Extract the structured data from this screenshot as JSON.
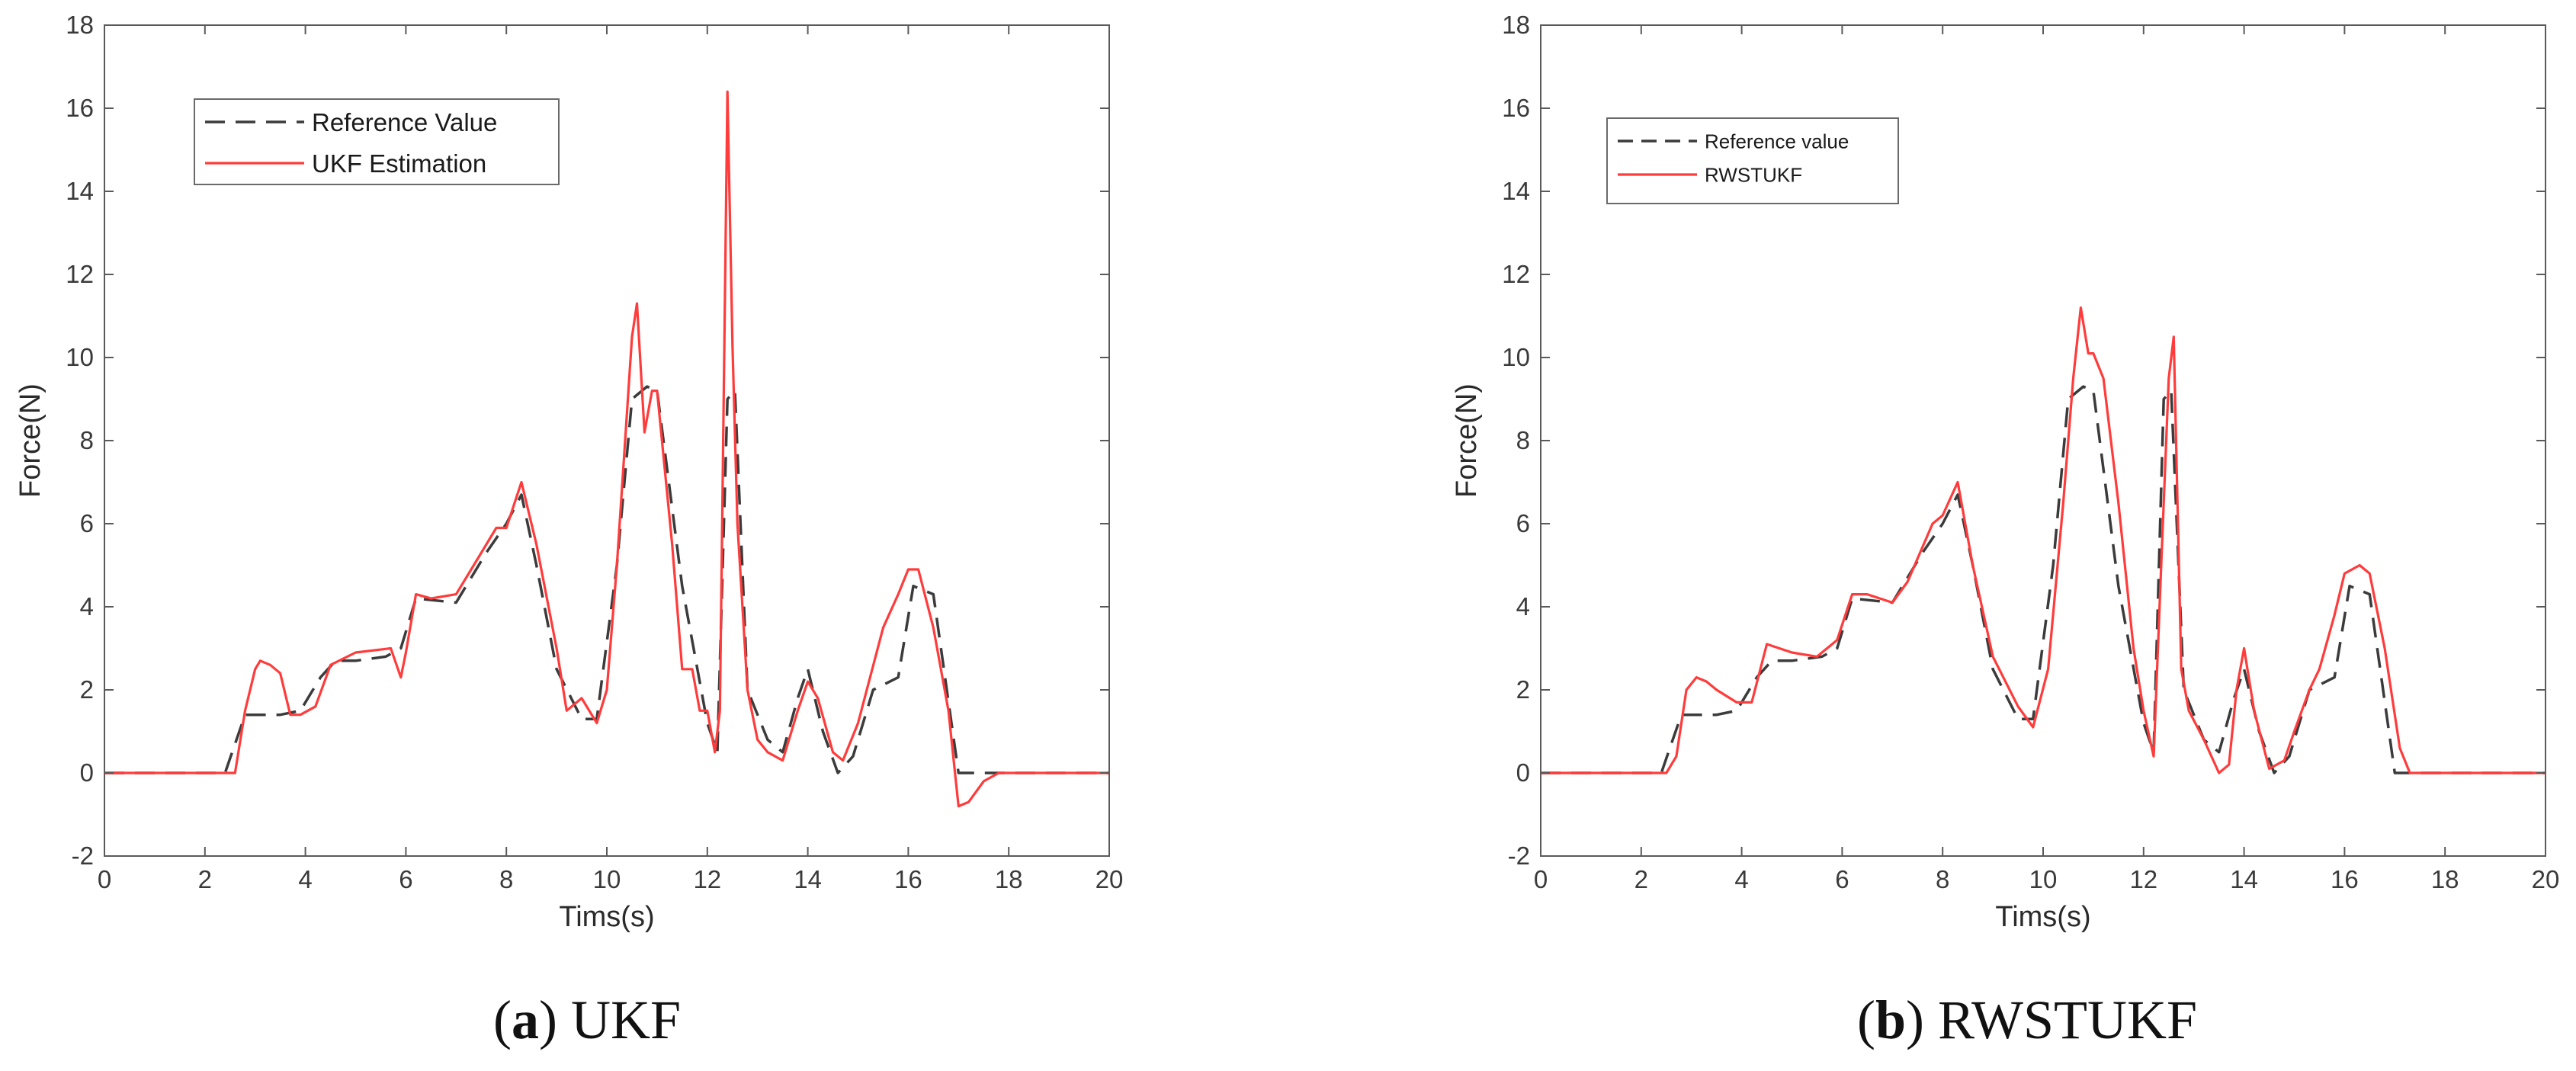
{
  "colors": {
    "reference": "#3b3b3b",
    "estimate": "#ff3b3b",
    "axis": "#5a5a5a"
  },
  "captions": [
    {
      "letter": "a",
      "text": "UKF"
    },
    {
      "letter": "b",
      "text": "RWSTUKF"
    }
  ],
  "chart_data": [
    {
      "type": "line",
      "xlabel": "Tims(s)",
      "ylabel": "Force(N)",
      "xlim": [
        0,
        20
      ],
      "ylim": [
        -2,
        18
      ],
      "xticks": [
        "0",
        "2",
        "4",
        "6",
        "8",
        "10",
        "12",
        "14",
        "16",
        "18",
        "20"
      ],
      "yticks": [
        "-2",
        "0",
        "2",
        "4",
        "6",
        "8",
        "10",
        "12",
        "14",
        "16",
        "18"
      ],
      "grid": false,
      "legend_position": "top-left",
      "series": [
        {
          "name": "Reference Value",
          "style": "dashed",
          "color": "#3b3b3b",
          "x": [
            0,
            2.4,
            2.6,
            2.8,
            3.5,
            3.9,
            4.3,
            4.6,
            5.0,
            5.6,
            5.9,
            6.2,
            7.0,
            7.6,
            8.0,
            8.3,
            8.6,
            9.0,
            9.5,
            9.8,
            10.2,
            10.5,
            10.8,
            11.0,
            11.5,
            12.0,
            12.2,
            12.4,
            12.55,
            12.8,
            13.2,
            13.5,
            13.8,
            14.0,
            14.3,
            14.6,
            14.9,
            15.3,
            15.8,
            16.1,
            16.5,
            17.0,
            20
          ],
          "y": [
            0,
            0,
            0.7,
            1.4,
            1.4,
            1.5,
            2.3,
            2.7,
            2.7,
            2.8,
            3.0,
            4.2,
            4.1,
            5.3,
            6.0,
            6.7,
            5.0,
            2.5,
            1.3,
            1.3,
            5.0,
            9.0,
            9.3,
            9.2,
            4.5,
            1.2,
            0.5,
            9.0,
            9.2,
            2.0,
            0.8,
            0.5,
            1.8,
            2.5,
            1.0,
            0.0,
            0.4,
            2.0,
            2.3,
            4.5,
            4.3,
            0.0,
            0.0
          ]
        },
        {
          "name": "UKF Estimation",
          "style": "solid",
          "color": "#ff3b3b",
          "x": [
            0,
            2.6,
            2.8,
            3.0,
            3.1,
            3.3,
            3.5,
            3.7,
            3.9,
            4.2,
            4.5,
            5.0,
            5.7,
            5.9,
            6.0,
            6.2,
            6.5,
            7.0,
            7.3,
            7.8,
            8.0,
            8.3,
            8.6,
            9.0,
            9.2,
            9.5,
            9.8,
            10.0,
            10.2,
            10.5,
            10.6,
            10.75,
            10.9,
            11.0,
            11.3,
            11.5,
            11.7,
            11.85,
            12.0,
            12.15,
            12.25,
            12.4,
            12.5,
            12.6,
            12.8,
            13.0,
            13.2,
            13.5,
            13.8,
            14.0,
            14.2,
            14.5,
            14.7,
            15.0,
            15.5,
            15.8,
            16.0,
            16.2,
            16.5,
            16.8,
            17.0,
            17.2,
            17.5,
            17.8,
            20
          ],
          "y": [
            0,
            0,
            1.5,
            2.5,
            2.7,
            2.6,
            2.4,
            1.4,
            1.4,
            1.6,
            2.6,
            2.9,
            3.0,
            2.3,
            2.9,
            4.3,
            4.2,
            4.3,
            4.9,
            5.9,
            5.9,
            7.0,
            5.5,
            3.0,
            1.5,
            1.8,
            1.2,
            2.0,
            5.0,
            10.5,
            11.3,
            8.2,
            9.2,
            9.2,
            5.5,
            2.5,
            2.5,
            1.5,
            1.5,
            0.5,
            1.5,
            16.4,
            10.3,
            6.0,
            2.0,
            0.8,
            0.5,
            0.3,
            1.5,
            2.2,
            1.8,
            0.5,
            0.3,
            1.2,
            3.5,
            4.3,
            4.9,
            4.9,
            3.5,
            1.5,
            -0.8,
            -0.7,
            -0.2,
            0.0,
            0.0
          ]
        }
      ]
    },
    {
      "type": "line",
      "xlabel": "Tims(s)",
      "ylabel": "Force(N)",
      "xlim": [
        0,
        20
      ],
      "ylim": [
        -2,
        18
      ],
      "xticks": [
        "0",
        "2",
        "4",
        "6",
        "8",
        "10",
        "12",
        "14",
        "16",
        "18",
        "20"
      ],
      "yticks": [
        "-2",
        "0",
        "2",
        "4",
        "6",
        "8",
        "10",
        "12",
        "14",
        "16",
        "18"
      ],
      "grid": false,
      "legend_position": "top-left",
      "series": [
        {
          "name": "Reference value",
          "style": "dashed",
          "color": "#3b3b3b",
          "x": [
            0,
            2.4,
            2.6,
            2.8,
            3.5,
            3.9,
            4.3,
            4.6,
            5.0,
            5.6,
            5.9,
            6.2,
            7.0,
            7.6,
            8.0,
            8.3,
            8.6,
            9.0,
            9.5,
            9.8,
            10.2,
            10.5,
            10.8,
            11.0,
            11.5,
            12.0,
            12.2,
            12.4,
            12.55,
            12.8,
            13.2,
            13.5,
            13.8,
            14.0,
            14.3,
            14.6,
            14.9,
            15.3,
            15.8,
            16.1,
            16.5,
            17.0,
            20
          ],
          "y": [
            0,
            0,
            0.7,
            1.4,
            1.4,
            1.5,
            2.3,
            2.7,
            2.7,
            2.8,
            3.0,
            4.2,
            4.1,
            5.3,
            6.0,
            6.7,
            5.0,
            2.5,
            1.3,
            1.3,
            5.0,
            9.0,
            9.3,
            9.2,
            4.5,
            1.2,
            0.5,
            9.0,
            9.2,
            2.0,
            0.8,
            0.5,
            1.8,
            2.5,
            1.0,
            0.0,
            0.4,
            2.0,
            2.3,
            4.5,
            4.3,
            0.0,
            0.0
          ]
        },
        {
          "name": "RWSTUKF",
          "style": "solid",
          "color": "#ff3b3b",
          "x": [
            0,
            2.5,
            2.7,
            2.9,
            3.1,
            3.3,
            3.5,
            3.9,
            4.2,
            4.5,
            5.0,
            5.5,
            5.9,
            6.2,
            6.5,
            7.0,
            7.3,
            7.8,
            8.0,
            8.3,
            8.6,
            9.0,
            9.5,
            9.8,
            10.1,
            10.4,
            10.6,
            10.75,
            10.9,
            11.0,
            11.2,
            11.5,
            11.8,
            12.0,
            12.2,
            12.35,
            12.5,
            12.6,
            12.75,
            12.9,
            13.2,
            13.5,
            13.7,
            13.85,
            14.0,
            14.2,
            14.5,
            14.8,
            15.0,
            15.3,
            15.5,
            15.8,
            16.0,
            16.3,
            16.5,
            16.8,
            17.1,
            17.3,
            20
          ],
          "y": [
            0,
            0,
            0.4,
            2.0,
            2.3,
            2.2,
            2.0,
            1.7,
            1.7,
            3.1,
            2.9,
            2.8,
            3.2,
            4.3,
            4.3,
            4.1,
            4.6,
            6.0,
            6.2,
            7.0,
            5.0,
            2.8,
            1.6,
            1.1,
            2.5,
            6.5,
            9.5,
            11.2,
            10.1,
            10.1,
            9.5,
            6.5,
            3.0,
            1.5,
            0.4,
            5.0,
            9.5,
            10.5,
            2.5,
            1.5,
            0.8,
            0.0,
            0.2,
            2.0,
            3.0,
            1.5,
            0.1,
            0.3,
            1.0,
            2.0,
            2.5,
            3.8,
            4.8,
            5.0,
            4.8,
            3.0,
            0.6,
            0.0,
            0.0
          ]
        }
      ]
    }
  ]
}
